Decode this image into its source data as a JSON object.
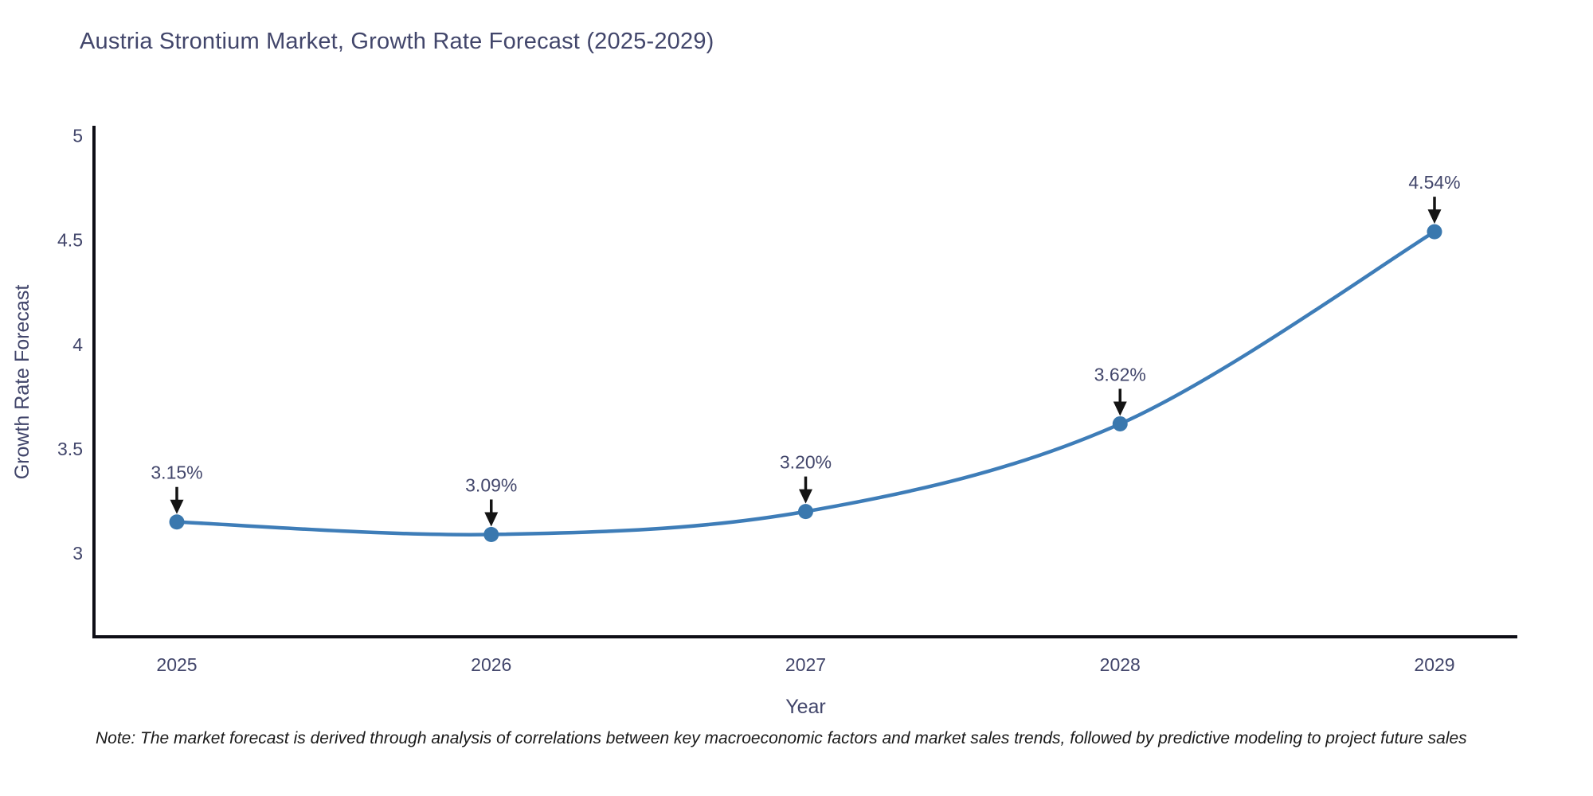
{
  "page": {
    "background": "#ffffff"
  },
  "chart_data": {
    "type": "line",
    "title": "Austria Strontium Market, Growth Rate Forecast (2025-2029)",
    "xlabel": "Year",
    "ylabel": "Growth Rate Forecast",
    "categories": [
      "2025",
      "2026",
      "2027",
      "2028",
      "2029"
    ],
    "series": [
      {
        "name": "Growth Rate Forecast",
        "values": [
          3.15,
          3.09,
          3.2,
          3.62,
          4.54
        ],
        "point_labels": [
          "3.15%",
          "3.09%",
          "3.20%",
          "3.62%",
          "4.54%"
        ]
      }
    ],
    "ytick_values": [
      3,
      3.5,
      4,
      4.5,
      5
    ],
    "ytick_labels": [
      "3",
      "3.5",
      "4",
      "4.5",
      "5"
    ],
    "ylim": [
      2.6,
      5.04
    ],
    "grid": false,
    "legend": false,
    "line_shape": "spline",
    "annotations_style": "label-with-down-arrow",
    "colors": {
      "line": "#3e7db8",
      "marker": "#3a78ae",
      "text": "#42466b",
      "axis_line": "#0e0e16",
      "arrow": "#141414"
    }
  },
  "note": {
    "text": "Note: The market forecast is derived through analysis of correlations between key macroeconomic factors and market sales trends, followed by predictive modeling to project future sales"
  }
}
